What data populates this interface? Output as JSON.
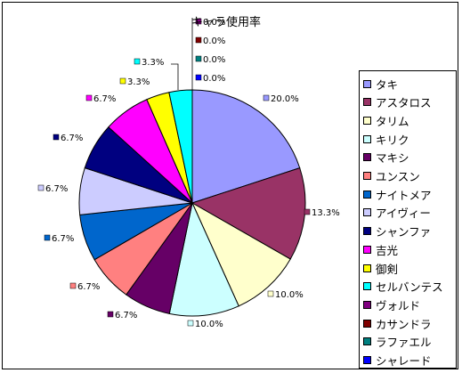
{
  "chart_data": {
    "type": "pie",
    "title": "キャラ使用率",
    "legend_placement": "right",
    "slices": [
      {
        "label": "タキ",
        "value": 20.0,
        "display": "20.0%",
        "color": "#9999ff"
      },
      {
        "label": "アスタロス",
        "value": 13.3,
        "display": "13.3%",
        "color": "#993366"
      },
      {
        "label": "タリム",
        "value": 10.0,
        "display": "10.0%",
        "color": "#ffffcc"
      },
      {
        "label": "キリク",
        "value": 10.0,
        "display": "10.0%",
        "color": "#ccffff"
      },
      {
        "label": "マキシ",
        "value": 6.7,
        "display": "6.7%",
        "color": "#660066"
      },
      {
        "label": "ユンスン",
        "value": 6.7,
        "display": "6.7%",
        "color": "#ff8080"
      },
      {
        "label": "ナイトメア",
        "value": 6.7,
        "display": "6.7%",
        "color": "#0066cc"
      },
      {
        "label": "アイヴィー",
        "value": 6.7,
        "display": "6.7%",
        "color": "#ccccff"
      },
      {
        "label": "シャンファ",
        "value": 6.7,
        "display": "6.7%",
        "color": "#000080"
      },
      {
        "label": "吉光",
        "value": 6.7,
        "display": "6.7%",
        "color": "#ff00ff"
      },
      {
        "label": "御剣",
        "value": 3.3,
        "display": "3.3%",
        "color": "#ffff00"
      },
      {
        "label": "セルバンテス",
        "value": 3.3,
        "display": "3.3%",
        "color": "#00ffff"
      },
      {
        "label": "ヴォルド",
        "value": 0.0,
        "display": "0.0%",
        "color": "#800080"
      },
      {
        "label": "カサンドラ",
        "value": 0.0,
        "display": "0.0%",
        "color": "#800000"
      },
      {
        "label": "ラファエル",
        "value": 0.0,
        "display": "0.0%",
        "color": "#008080"
      },
      {
        "label": "シャレード",
        "value": 0.0,
        "display": "0.0%",
        "color": "#0000ff"
      }
    ]
  }
}
